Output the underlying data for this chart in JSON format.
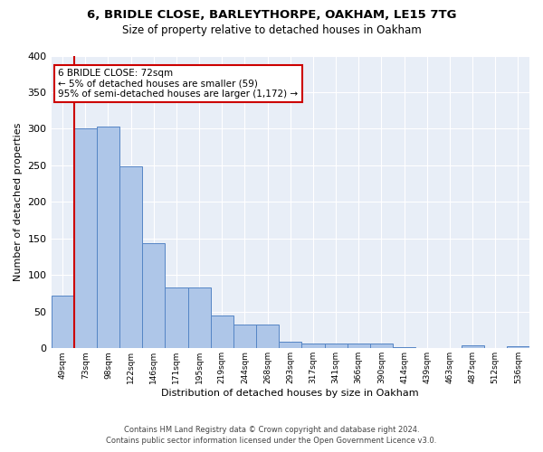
{
  "title_line1": "6, BRIDLE CLOSE, BARLEYTHORPE, OAKHAM, LE15 7TG",
  "title_line2": "Size of property relative to detached houses in Oakham",
  "xlabel": "Distribution of detached houses by size in Oakham",
  "ylabel": "Number of detached properties",
  "footer_line1": "Contains HM Land Registry data © Crown copyright and database right 2024.",
  "footer_line2": "Contains public sector information licensed under the Open Government Licence v3.0.",
  "categories": [
    "49sqm",
    "73sqm",
    "98sqm",
    "122sqm",
    "146sqm",
    "171sqm",
    "195sqm",
    "219sqm",
    "244sqm",
    "268sqm",
    "293sqm",
    "317sqm",
    "341sqm",
    "366sqm",
    "390sqm",
    "414sqm",
    "439sqm",
    "463sqm",
    "487sqm",
    "512sqm",
    "536sqm"
  ],
  "values": [
    72,
    300,
    303,
    249,
    144,
    83,
    83,
    45,
    32,
    32,
    9,
    6,
    6,
    6,
    6,
    2,
    0,
    0,
    4,
    0,
    3
  ],
  "bar_color": "#aec6e8",
  "bar_edge_color": "#5585c5",
  "bg_color": "#e8eef7",
  "grid_color": "#ffffff",
  "annotation_text_line1": "6 BRIDLE CLOSE: 72sqm",
  "annotation_text_line2": "← 5% of detached houses are smaller (59)",
  "annotation_text_line3": "95% of semi-detached houses are larger (1,172) →",
  "annotation_box_facecolor": "#ffffff",
  "annotation_box_edgecolor": "#cc0000",
  "red_line_x": 0.5,
  "ylim": [
    0,
    400
  ],
  "yticks": [
    0,
    50,
    100,
    150,
    200,
    250,
    300,
    350,
    400
  ]
}
